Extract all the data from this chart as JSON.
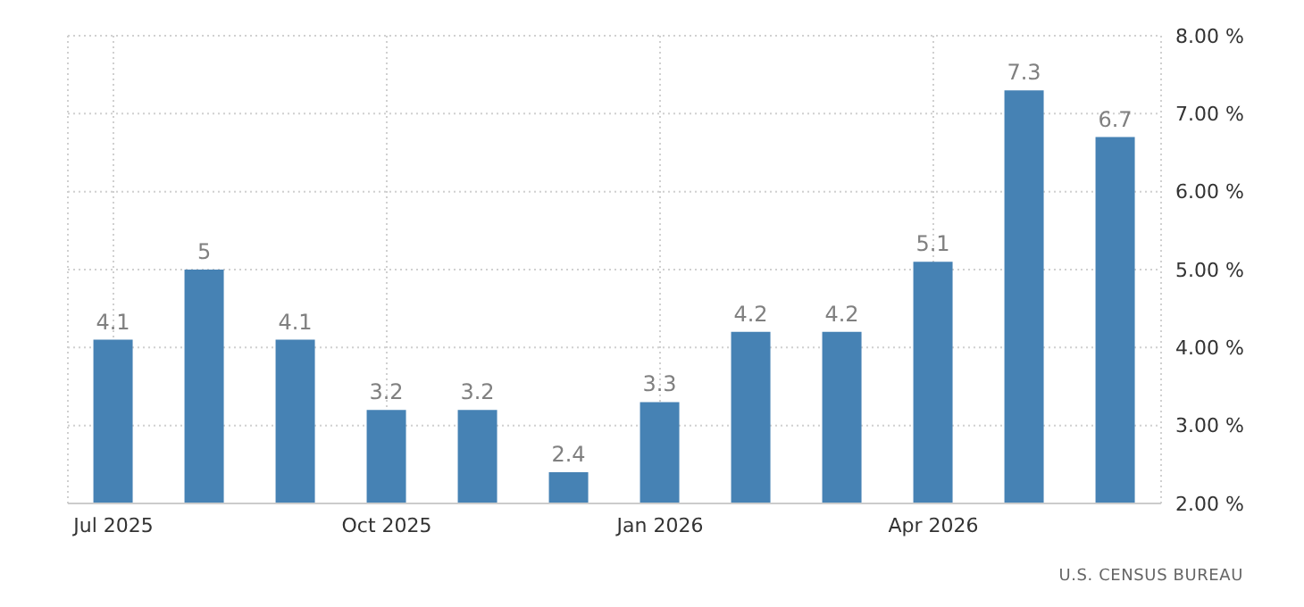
{
  "chart_data": {
    "type": "bar",
    "categories": [
      "Jul 2025",
      null,
      null,
      "Oct 2025",
      null,
      null,
      "Jan 2026",
      null,
      null,
      "Apr 2026",
      null,
      null
    ],
    "values": [
      4.1,
      5,
      4.1,
      3.2,
      3.2,
      2.4,
      3.3,
      4.2,
      4.2,
      5.1,
      7.3,
      6.7
    ],
    "color": "#4682b4",
    "ylim": [
      2,
      8
    ],
    "yticks": [
      {
        "value": 2,
        "label": "2.00 %"
      },
      {
        "value": 3,
        "label": "3.00 %"
      },
      {
        "value": 4,
        "label": "4.00 %"
      },
      {
        "value": 5,
        "label": "5.00 %"
      },
      {
        "value": 6,
        "label": "6.00 %"
      },
      {
        "value": 7,
        "label": "7.00 %"
      },
      {
        "value": 8,
        "label": "8.00 %"
      }
    ],
    "grid": true,
    "data_labels": true,
    "annotations": [
      "U.S. CENSUS BUREAU"
    ]
  }
}
